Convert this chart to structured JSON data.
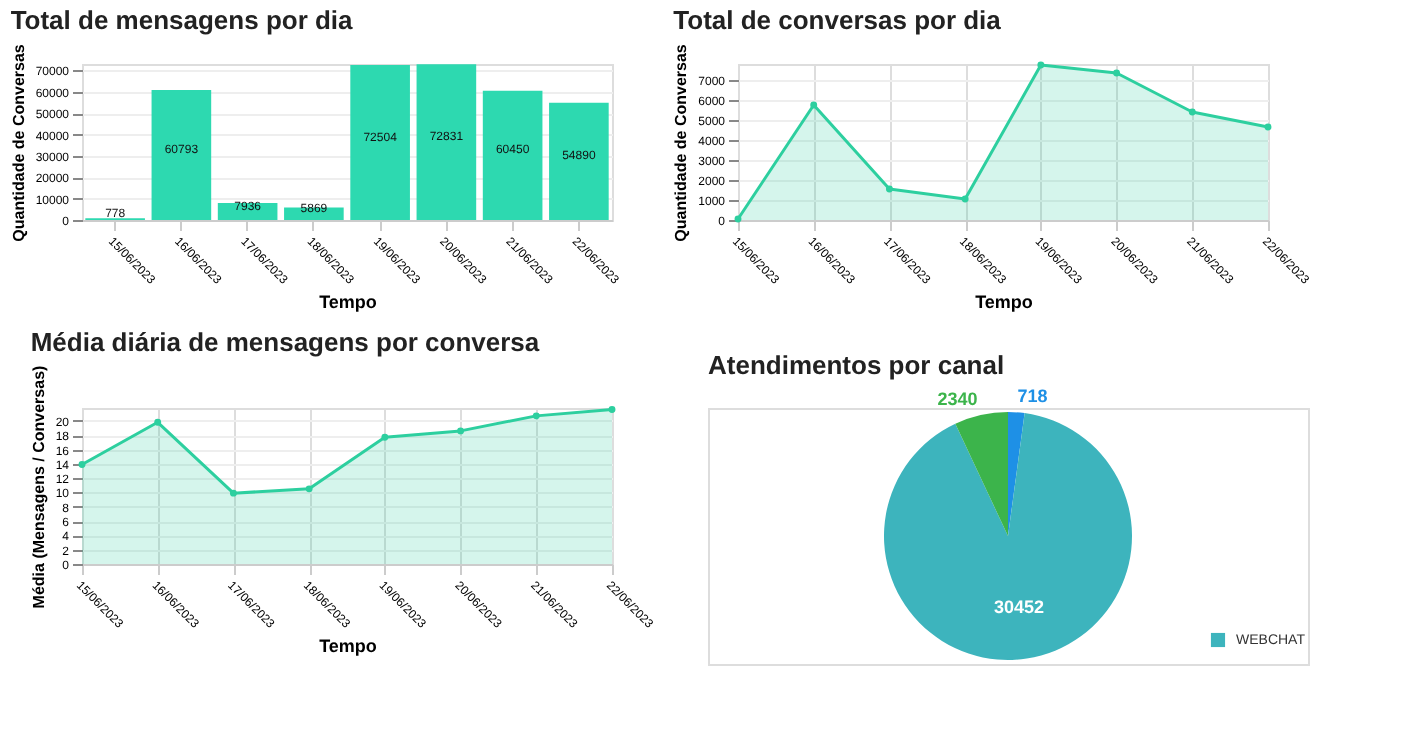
{
  "chart_data": [
    {
      "type": "bar",
      "title": "Total de mensagens por dia",
      "xlabel": "Tempo",
      "ylabel": "Quantidade de Conversas",
      "categories": [
        "15/06/2023",
        "16/06/2023",
        "17/06/2023",
        "18/06/2023",
        "19/06/2023",
        "20/06/2023",
        "21/06/2023",
        "22/06/2023"
      ],
      "values": [
        778,
        60793,
        7936,
        5869,
        72504,
        72831,
        60450,
        54890
      ],
      "color": "#2dd9b0",
      "ylim": [
        0,
        73000
      ],
      "yticks": [
        0,
        10000,
        20000,
        30000,
        40000,
        50000,
        60000,
        70000
      ],
      "grid": "y",
      "data_labels": true
    },
    {
      "type": "area",
      "title": "Total de conversas por dia",
      "xlabel": "Tempo",
      "ylabel": "Quantidade de Conversas",
      "categories": [
        "15/06/2023",
        "16/06/2023",
        "17/06/2023",
        "18/06/2023",
        "19/06/2023",
        "20/06/2023",
        "21/06/2023",
        "22/06/2023"
      ],
      "values": [
        50,
        5750,
        1550,
        1050,
        7750,
        7350,
        5400,
        4650
      ],
      "color": "#2dcf9f",
      "ylim": [
        0,
        7800
      ],
      "yticks": [
        0,
        1000,
        2000,
        3000,
        4000,
        5000,
        6000,
        7000
      ],
      "grid": true,
      "marker": "circle"
    },
    {
      "type": "area",
      "title": "Média diária de mensagens por conversa",
      "xlabel": "Tempo",
      "ylabel": "Média (Mensagens / Conversas)",
      "categories": [
        "15/06/2023",
        "16/06/2023",
        "17/06/2023",
        "18/06/2023",
        "19/06/2023",
        "20/06/2023",
        "21/06/2023",
        "22/06/2023"
      ],
      "values": [
        13.9,
        19.8,
        9.9,
        10.5,
        17.7,
        18.6,
        20.7,
        21.6
      ],
      "color": "#2dcf9f",
      "ylim": [
        0,
        21.8
      ],
      "yticks": [
        0,
        2,
        4,
        6,
        8,
        10,
        12,
        14,
        16,
        18,
        20
      ],
      "grid": true,
      "marker": "circle"
    },
    {
      "type": "pie",
      "title": "Atendimentos por canal",
      "categories": [
        null,
        "WEBCHAT",
        null
      ],
      "values": [
        718,
        30452,
        2340
      ],
      "colors": [
        "#1e90e6",
        "#3db4bd",
        "#3cb44b"
      ],
      "data_labels": true,
      "legend": "bottom right"
    }
  ]
}
